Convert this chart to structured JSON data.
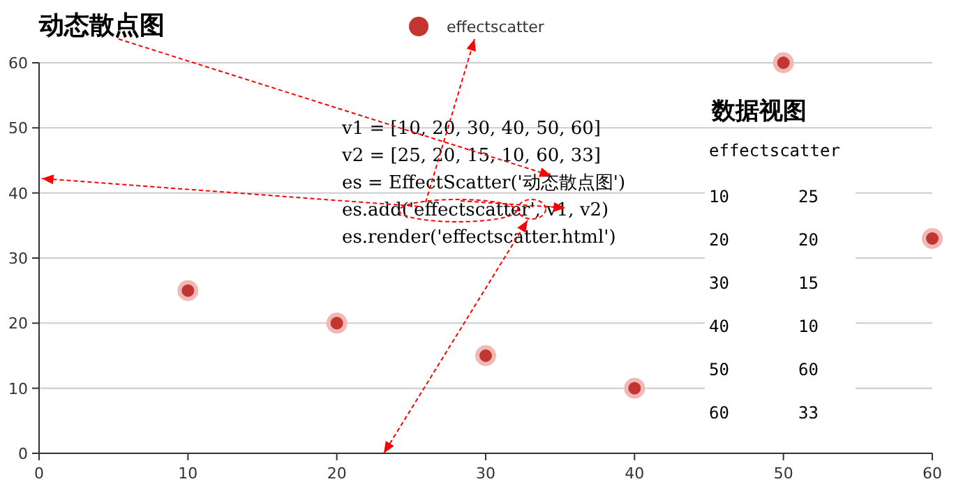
{
  "chart_data": {
    "type": "scatter",
    "title": "动态散点图",
    "x": [
      10,
      20,
      30,
      40,
      50,
      60
    ],
    "series": [
      {
        "name": "effectscatter",
        "color": "#c23531",
        "values": [
          25,
          20,
          15,
          10,
          60,
          33
        ]
      }
    ],
    "xlim": [
      0,
      60
    ],
    "xticks": [
      0,
      10,
      20,
      30,
      40,
      50,
      60
    ],
    "ylim": [
      0,
      60
    ],
    "yticks": [
      0,
      10,
      20,
      30,
      40,
      50,
      60
    ],
    "grid": "y",
    "legend": "top",
    "marker": "circle",
    "annotations": [
      "v1 = [10, 20, 30, 40, 50, 60]",
      "v2 = [25, 20, 15, 10, 60, 33]",
      "es = EffectScatter('动态散点图')",
      "es.add('effectscatter', v1, v2)",
      "es.render('effectscatter.html')",
      "数据视图",
      "effectscatter",
      "10",
      "25",
      "20",
      "20",
      "30",
      "15",
      "40",
      "10",
      "50",
      "60",
      "60",
      "33"
    ]
  }
}
